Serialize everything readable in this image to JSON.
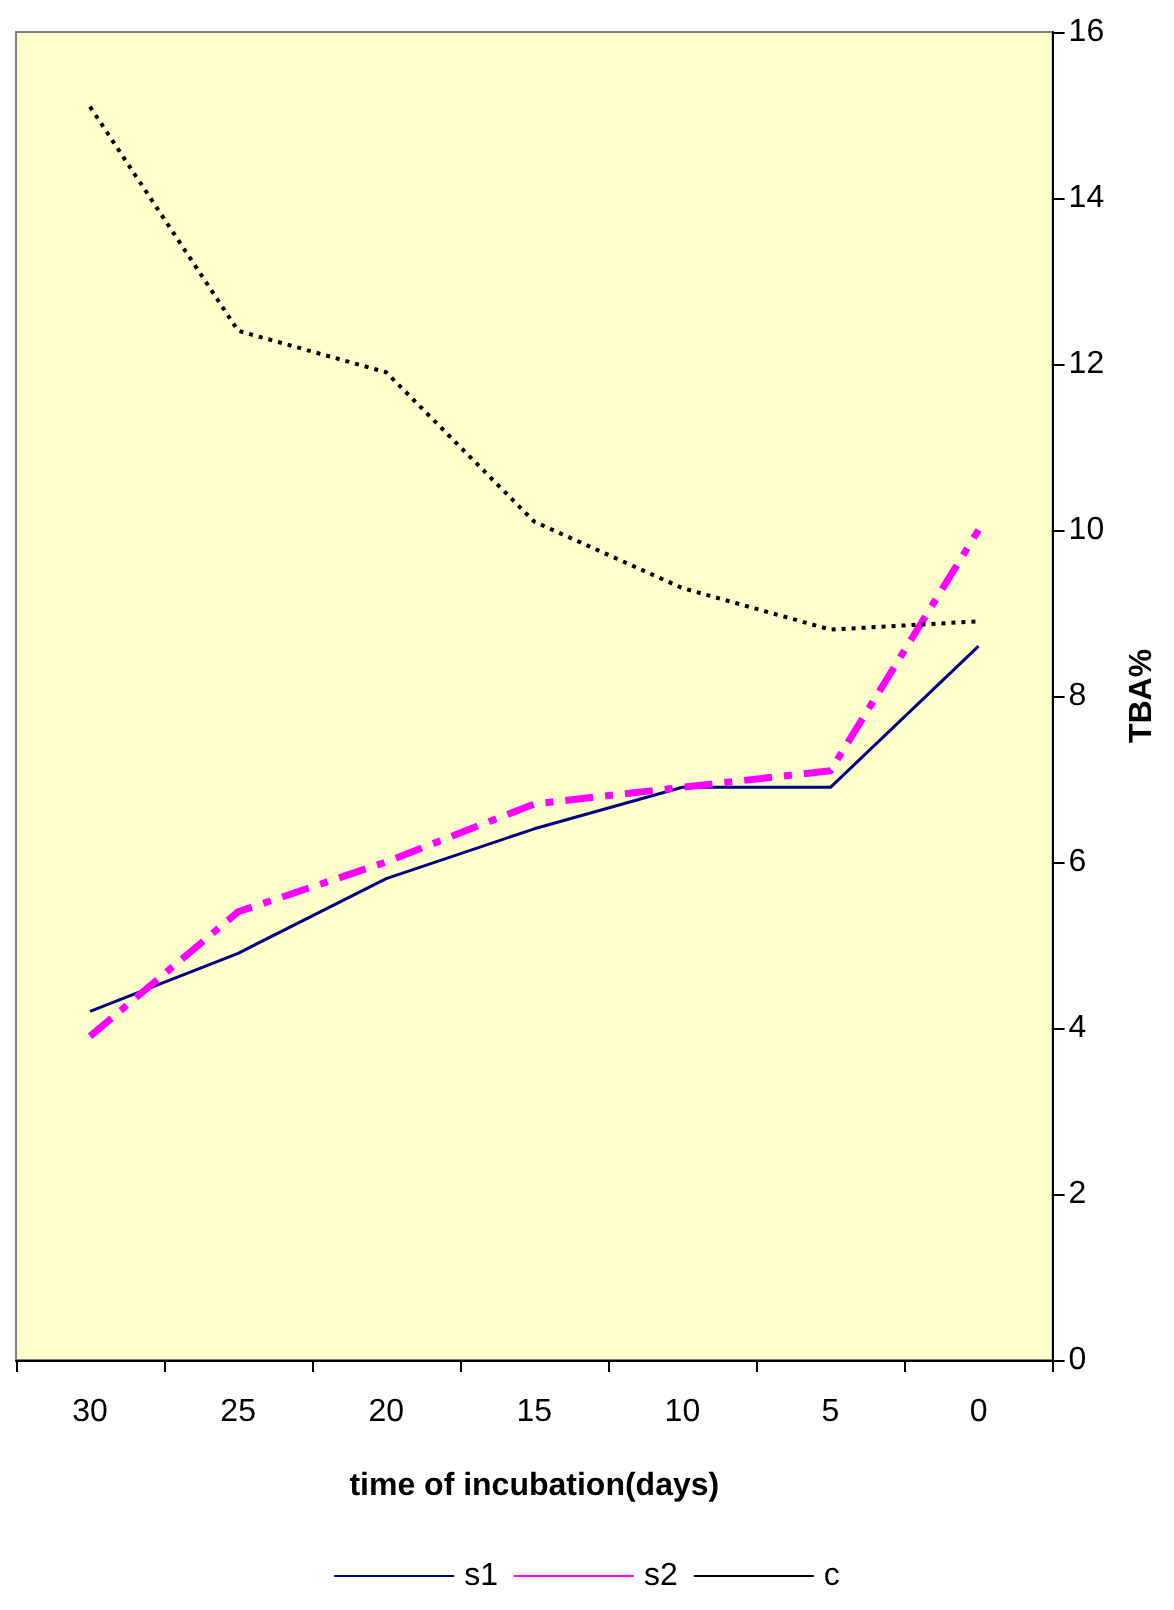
{
  "chart_data": {
    "type": "line",
    "xlabel": "time of incubation(days)",
    "ylabel": "TBA%",
    "categories": [
      "30",
      "25",
      "20",
      "15",
      "10",
      "5",
      "0"
    ],
    "series": [
      {
        "name": "s1",
        "color": "#000080",
        "line_style": "solid",
        "values": [
          4.2,
          4.9,
          5.8,
          6.4,
          6.9,
          6.9,
          8.6
        ]
      },
      {
        "name": "s2",
        "color": "#ff00ff",
        "line_style": "dashdot",
        "values": [
          3.9,
          5.4,
          6.0,
          6.7,
          6.9,
          7.1,
          10.0
        ]
      },
      {
        "name": "c",
        "color": "#000000",
        "line_style": "dotted",
        "values": [
          15.1,
          12.4,
          11.9,
          10.1,
          9.3,
          8.8,
          8.9
        ]
      }
    ],
    "ylim": [
      0,
      16
    ],
    "yticks": [
      0,
      2,
      4,
      6,
      8,
      10,
      12,
      14,
      16
    ],
    "grid": false,
    "legend": "bottom",
    "marker": "none"
  }
}
